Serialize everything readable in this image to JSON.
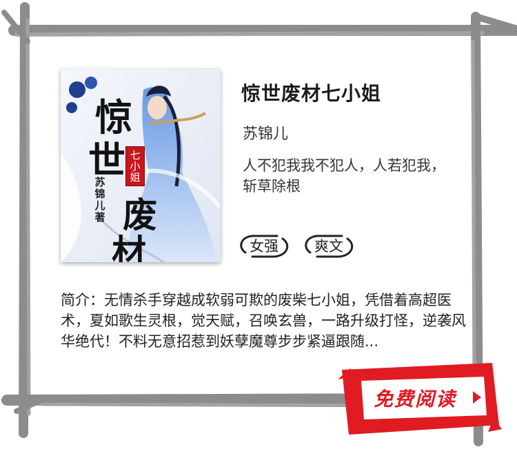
{
  "book": {
    "title": "惊世废材七小姐",
    "author": "苏锦儿",
    "tagline": "人不犯我我不犯人，人若犯我，斩草除根",
    "tags": [
      "女强",
      "爽文"
    ],
    "intro": "简介：无情杀手穿越成软弱可欺的废柴七小姐，凭借着高超医术，夏如歌生灵根，觉天赋，召唤玄兽，一路升级打怪，逆袭风华绝代！不料无意招惹到妖孽魔尊步步紧逼跟随..."
  },
  "cover": {
    "title_chars": [
      "惊",
      "世",
      "废",
      "材"
    ],
    "stamp": "七小姐",
    "author_text": "苏锦儿著"
  },
  "cta": {
    "label": "免费阅读"
  },
  "colors": {
    "frame": "#8c8c8c",
    "accent_red": "#e01b22",
    "cover_blue": "#3b6fc9"
  },
  "icons": {
    "play": "play-triangle-icon",
    "tag_swirl": "brush-swirl-icon"
  }
}
